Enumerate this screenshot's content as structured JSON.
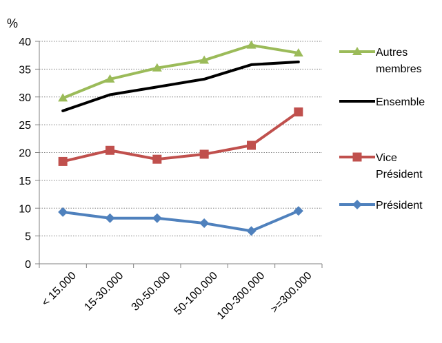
{
  "chart_data": {
    "type": "line",
    "title": "",
    "ylabel": "%",
    "xlabel": "",
    "ylim": [
      0,
      40
    ],
    "yticks": [
      "0",
      "5",
      "10",
      "15",
      "20",
      "25",
      "30",
      "35",
      "40"
    ],
    "categories": [
      "< 15.000",
      "15-30.000",
      "30-50.000",
      "50-100.000",
      "100-300.000",
      ">=300.000"
    ],
    "grid": "horizontal dotted",
    "legend_position": "right",
    "series": [
      {
        "name": "Autres membres",
        "name_lines": [
          "Autres",
          "membres"
        ],
        "color": "#9bbb59",
        "marker": "triangle",
        "values": [
          29.8,
          33.2,
          35.2,
          36.6,
          39.3,
          37.9
        ]
      },
      {
        "name": "Ensemble",
        "name_lines": [
          "Ensemble"
        ],
        "color": "#000000",
        "marker": "none",
        "values": [
          27.5,
          30.4,
          31.8,
          33.2,
          35.8,
          36.3
        ]
      },
      {
        "name": "Vice Président",
        "name_lines": [
          "Vice",
          "Président"
        ],
        "color": "#c0504d",
        "marker": "square",
        "values": [
          18.4,
          20.4,
          18.8,
          19.7,
          21.3,
          27.3
        ]
      },
      {
        "name": "Président",
        "name_lines": [
          "Président"
        ],
        "color": "#4f81bd",
        "marker": "diamond",
        "values": [
          9.3,
          8.2,
          8.2,
          7.3,
          5.9,
          9.5
        ]
      }
    ]
  }
}
